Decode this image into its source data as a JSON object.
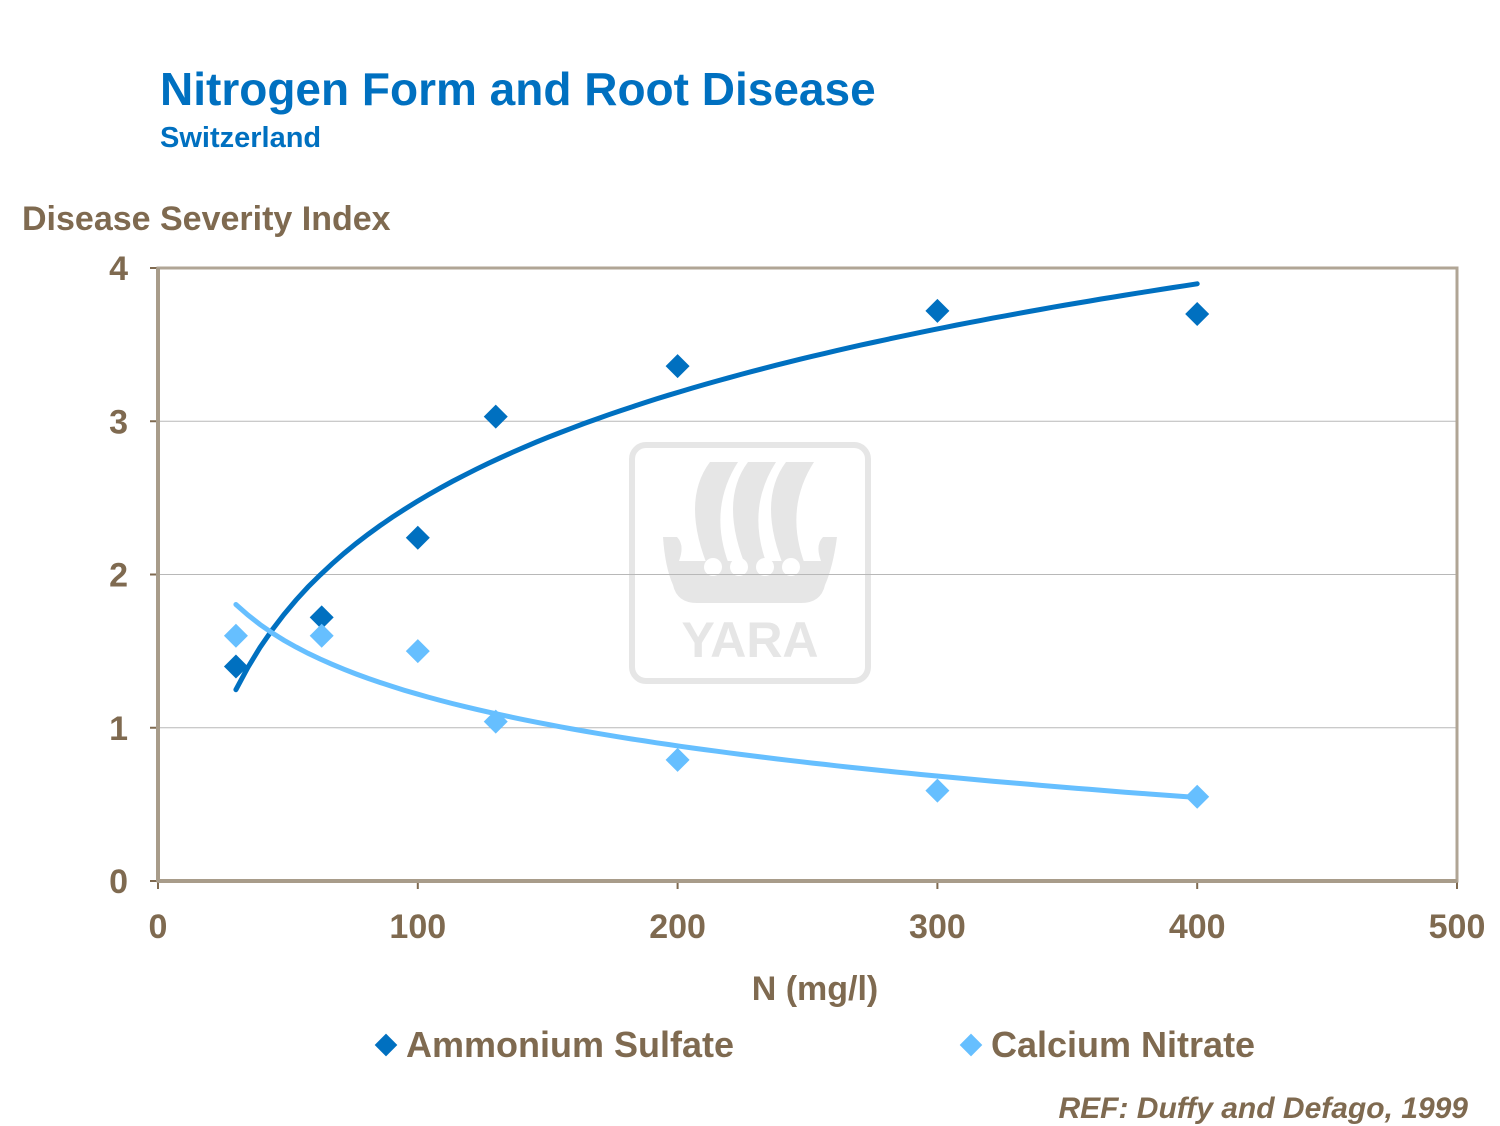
{
  "chart_data": {
    "type": "scatter",
    "title": "Nitrogen Form and Root Disease",
    "subtitle": "Switzerland",
    "xlabel": "N (mg/l)",
    "ylabel": "Disease Severity Index",
    "xlim": [
      0,
      500
    ],
    "ylim": [
      0,
      4
    ],
    "xticks": [
      "0",
      "100",
      "200",
      "300",
      "400",
      "500"
    ],
    "yticks": [
      "0",
      "1",
      "2",
      "3",
      "4"
    ],
    "grid": "horizontal",
    "legend_position": "bottom",
    "series": [
      {
        "name": "Ammonium Sulfate",
        "color": "#0070c0",
        "marker": "diamond",
        "trendline": "logarithmic",
        "x": [
          30,
          63,
          100,
          130,
          200,
          300,
          400
        ],
        "y": [
          1.4,
          1.72,
          2.24,
          3.03,
          3.36,
          3.72,
          3.7
        ]
      },
      {
        "name": "Calcium Nitrate",
        "color": "#66bfff",
        "marker": "diamond",
        "trendline": "logarithmic",
        "x": [
          30,
          63,
          100,
          130,
          200,
          300,
          400
        ],
        "y": [
          1.6,
          1.6,
          1.5,
          1.04,
          0.79,
          0.59,
          0.55
        ]
      }
    ]
  },
  "watermark": {
    "text": "YARA"
  },
  "reference": "REF: Duffy and Defago, 1999"
}
